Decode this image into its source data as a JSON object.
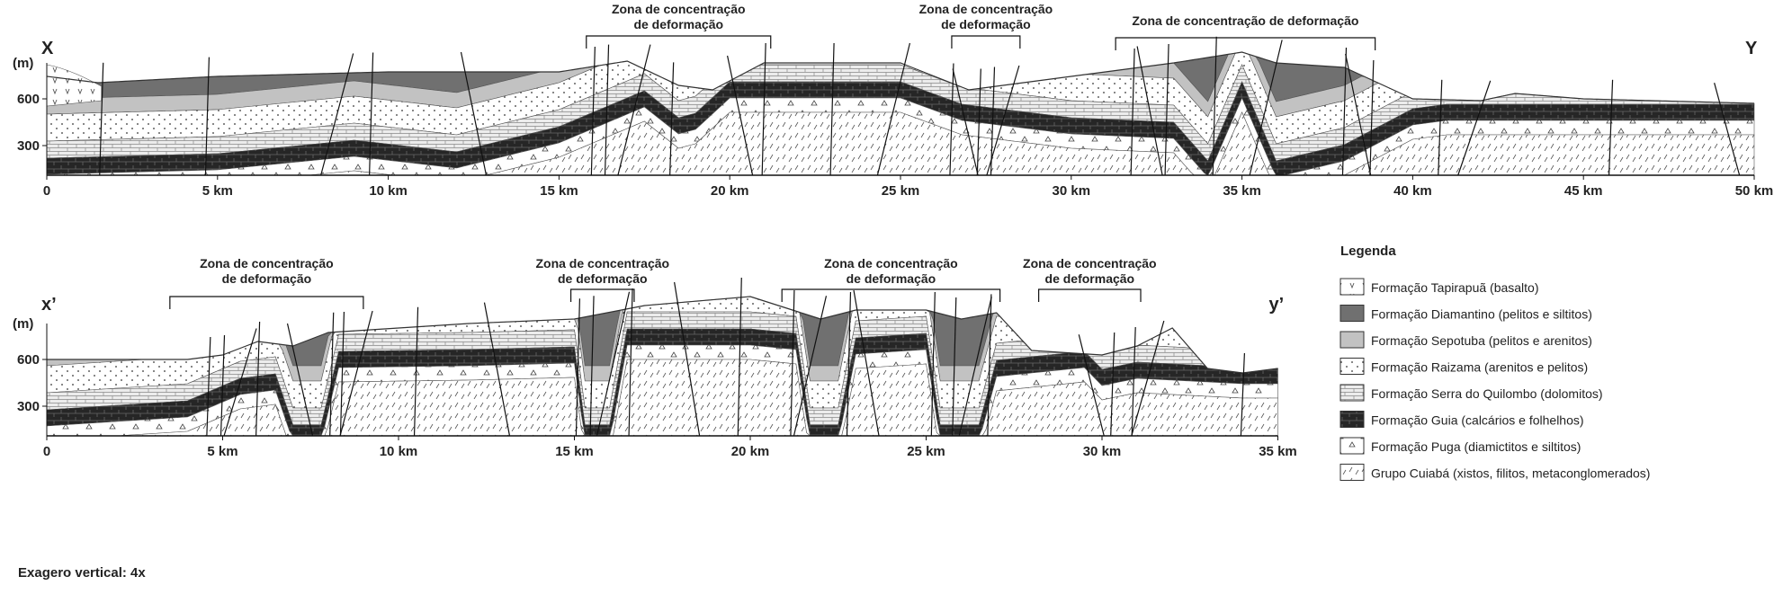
{
  "section_top": {
    "start_label": "X",
    "end_label": "Y",
    "unit": "(m)",
    "elevation_labels": [
      "600",
      "300"
    ],
    "distance_labels": [
      "0",
      "5 km",
      "10 km",
      "15 km",
      "20 km",
      "25 km",
      "30 km",
      "35 km",
      "40 km",
      "45 km",
      "50 km"
    ],
    "zones": [
      [
        "Zona de concentração",
        "de deformação"
      ],
      [
        "Zona de concentração",
        "de deformação"
      ],
      [
        "Zona de concentração de deformação"
      ]
    ]
  },
  "section_bottom": {
    "start_label": "x’",
    "end_label": "y’",
    "unit": "(m)",
    "elevation_labels": [
      "600",
      "300"
    ],
    "distance_labels": [
      "0",
      "5 km",
      "10 km",
      "15 km",
      "20 km",
      "25 km",
      "30 km",
      "35 km"
    ],
    "zones": [
      [
        "Zona de concentração",
        "de deformação"
      ],
      [
        "Zona de concentração",
        "de deformação"
      ],
      [
        "Zona de concentração",
        "de deformação"
      ],
      [
        "Zona de concentração",
        "de deformação"
      ]
    ]
  },
  "legend": {
    "title": "Legenda",
    "items": [
      "Formação Tapirapuã (basalto)",
      "Formação Diamantino (pelitos e siltitos)",
      "Formação Sepotuba (pelitos e arenitos)",
      "Formação Raizama (arenitos e pelitos)",
      "Formação Serra do Quilombo (dolomitos)",
      "Formação Guia (calcários e folhelhos)",
      "Formação Puga (diamictitos e siltitos)",
      "Grupo Cuiabá (xistos, filitos, metaconglomerados)"
    ]
  },
  "note": "Exagero vertical: 4x"
}
